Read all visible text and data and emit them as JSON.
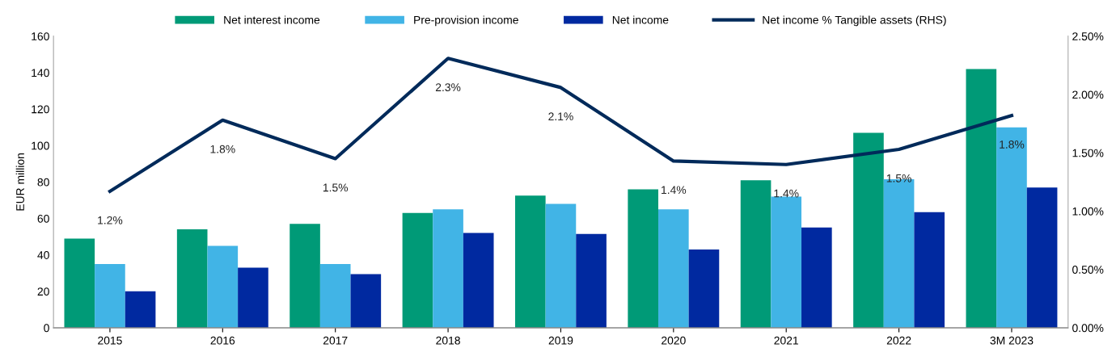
{
  "chart_data": {
    "type": "bar",
    "ylabel": "EUR million",
    "categories": [
      "2015",
      "2016",
      "2017",
      "2018",
      "2019",
      "2020",
      "2021",
      "2022",
      "3M 2023"
    ],
    "ylim": [
      0,
      160
    ],
    "yticks": [
      0,
      20,
      40,
      60,
      80,
      100,
      120,
      140,
      160
    ],
    "y2lim": [
      0,
      2.5
    ],
    "y2ticks": [
      {
        "value": 0,
        "label": "0.00%"
      },
      {
        "value": 0.5,
        "label": "0.50%"
      },
      {
        "value": 1,
        "label": "1.00%"
      },
      {
        "value": 1.5,
        "label": "1.50%"
      },
      {
        "value": 2,
        "label": "2.00%"
      },
      {
        "value": 2.5,
        "label": "2.50%"
      }
    ],
    "grid": false,
    "legend": "top",
    "series": [
      {
        "name": "Net interest income",
        "color": "#009a77",
        "values": [
          49,
          54,
          57,
          63,
          72.5,
          76,
          81,
          107,
          142
        ]
      },
      {
        "name": "Pre-provision income",
        "color": "#41b4e6",
        "values": [
          35,
          45,
          35,
          65,
          68,
          65,
          72,
          81.5,
          110
        ]
      },
      {
        "name": "Net income",
        "color": "#0029a0",
        "values": [
          20,
          33,
          29.5,
          52,
          51.5,
          43,
          55,
          63.5,
          77
        ]
      },
      {
        "name": "Net income % Tangible assets (RHS)",
        "type": "line",
        "axis": "y2",
        "color": "#002a5a",
        "marker": "none",
        "line_style": "solid",
        "values": [
          1.17,
          1.78,
          1.45,
          2.31,
          2.06,
          1.43,
          1.4,
          1.53,
          1.82
        ],
        "value_labels": [
          "1.2%",
          "1.8%",
          "1.5%",
          "2.3%",
          "2.1%",
          "1.4%",
          "1.4%",
          "1.5%",
          "1.8%"
        ]
      }
    ]
  }
}
